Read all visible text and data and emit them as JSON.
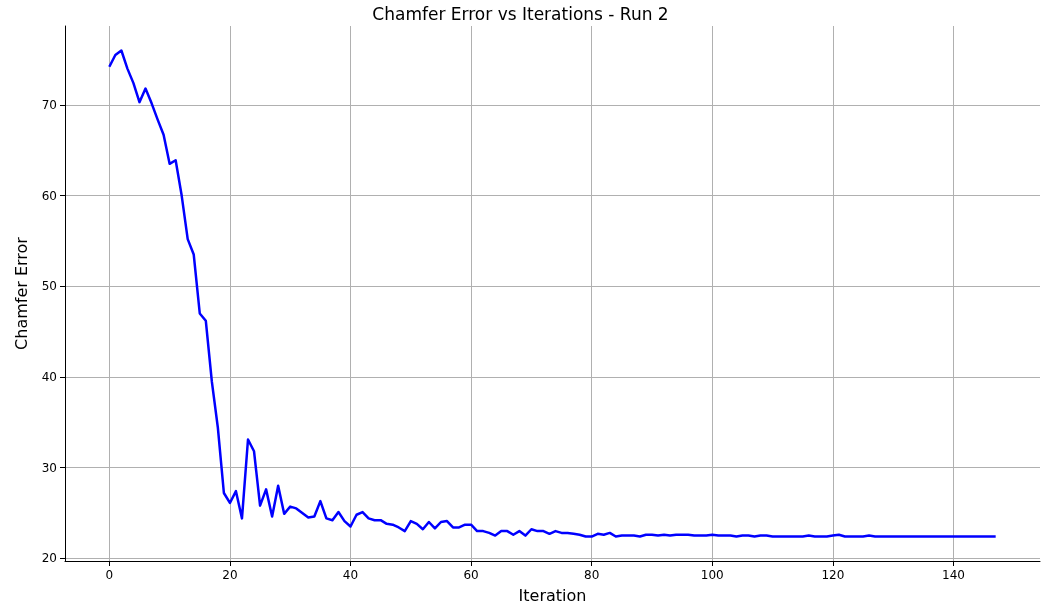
{
  "chart_data": {
    "type": "line",
    "title": "Chamfer Error vs Iterations - Run 2",
    "xlabel": "Iteration",
    "ylabel": "Chamfer Error",
    "x": [
      0,
      1,
      2,
      3,
      4,
      5,
      6,
      7,
      8,
      9,
      10,
      11,
      12,
      13,
      14,
      15,
      16,
      17,
      18,
      19,
      20,
      21,
      22,
      23,
      24,
      25,
      26,
      27,
      28,
      29,
      30,
      31,
      32,
      33,
      34,
      35,
      36,
      37,
      38,
      39,
      40,
      41,
      42,
      43,
      44,
      45,
      46,
      47,
      48,
      49,
      50,
      51,
      52,
      53,
      54,
      55,
      56,
      57,
      58,
      59,
      60,
      61,
      62,
      63,
      64,
      65,
      66,
      67,
      68,
      69,
      70,
      71,
      72,
      73,
      74,
      75,
      76,
      77,
      78,
      79,
      80,
      81,
      82,
      83,
      84,
      85,
      86,
      87,
      88,
      89,
      90,
      91,
      92,
      93,
      94,
      95,
      96,
      97,
      98,
      99,
      100,
      101,
      102,
      103,
      104,
      105,
      106,
      107,
      108,
      109,
      110,
      111,
      112,
      113,
      114,
      115,
      116,
      117,
      118,
      119,
      120,
      121,
      122,
      123,
      124,
      125,
      126,
      127,
      128,
      129,
      130,
      131,
      132,
      133,
      134,
      135,
      136,
      137,
      138,
      139,
      140,
      141,
      142,
      143,
      144,
      145,
      146,
      147
    ],
    "series": [
      {
        "color": "#0000ff",
        "values": [
          74.2,
          75.5,
          76.0,
          74.0,
          72.4,
          70.3,
          71.8,
          70.2,
          68.4,
          66.7,
          63.5,
          63.9,
          60.0,
          55.2,
          53.5,
          47.0,
          46.2,
          39.5,
          34.4,
          27.2,
          26.1,
          27.4,
          24.4,
          33.1,
          31.8,
          25.8,
          27.6,
          24.6,
          28.0,
          24.9,
          25.7,
          25.5,
          25.0,
          24.5,
          24.6,
          26.3,
          24.4,
          24.2,
          25.1,
          24.1,
          23.5,
          24.8,
          25.1,
          24.4,
          24.2,
          24.2,
          23.8,
          23.7,
          23.4,
          23.0,
          24.1,
          23.8,
          23.2,
          24.0,
          23.3,
          24.0,
          24.1,
          23.4,
          23.4,
          23.7,
          23.7,
          23.0,
          23.0,
          22.8,
          22.5,
          23.0,
          23.0,
          22.6,
          23.0,
          22.5,
          23.2,
          23.0,
          23.0,
          22.7,
          23.0,
          22.8,
          22.8,
          22.7,
          22.6,
          22.4,
          22.4,
          22.7,
          22.6,
          22.8,
          22.4,
          22.5,
          22.5,
          22.5,
          22.4,
          22.6,
          22.6,
          22.5,
          22.6,
          22.5,
          22.6,
          22.6,
          22.6,
          22.5,
          22.5,
          22.5,
          22.6,
          22.5,
          22.5,
          22.5,
          22.4,
          22.5,
          22.5,
          22.4,
          22.5,
          22.5,
          22.4,
          22.4,
          22.4,
          22.4,
          22.4,
          22.4,
          22.5,
          22.4,
          22.4,
          22.4,
          22.5,
          22.6,
          22.4,
          22.4,
          22.4,
          22.4,
          22.5,
          22.4,
          22.4,
          22.4,
          22.4,
          22.4,
          22.4,
          22.4,
          22.4,
          22.4,
          22.4,
          22.4,
          22.4,
          22.4,
          22.4,
          22.4,
          22.4,
          22.4,
          22.4,
          22.4,
          22.4,
          22.4
        ]
      }
    ],
    "xlim": [
      -7.35,
      154.35
    ],
    "xticks": [
      0,
      20,
      40,
      60,
      80,
      100,
      120,
      140
    ],
    "ylim": [
      19.7,
      78.7
    ],
    "yticks": [
      20,
      30,
      40,
      50,
      60,
      70
    ],
    "grid": true,
    "marker": "none",
    "line_style": "solid"
  }
}
